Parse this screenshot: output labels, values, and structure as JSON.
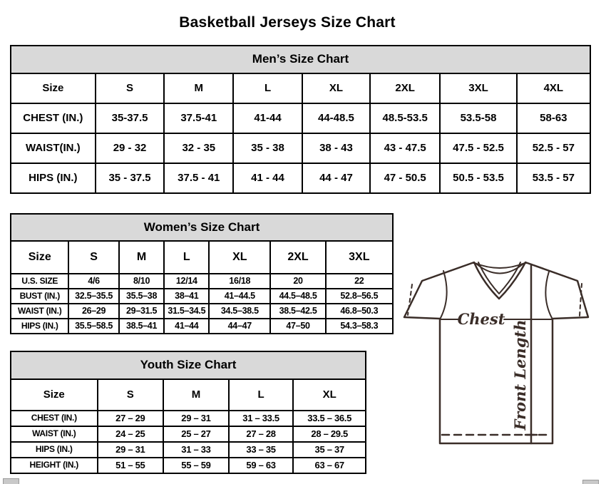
{
  "page": {
    "title": "Basketball Jerseys Size Chart"
  },
  "mens_chart": {
    "title": "Men’s Size Chart",
    "columns": [
      "Size",
      "S",
      "M",
      "L",
      "XL",
      "2XL",
      "3XL",
      "4XL"
    ],
    "rows": [
      {
        "label": "CHEST (IN.)",
        "values": [
          "35-37.5",
          "37.5-41",
          "41-44",
          "44-48.5",
          "48.5-53.5",
          "53.5-58",
          "58-63"
        ]
      },
      {
        "label": "WAIST(IN.)",
        "values": [
          "29 - 32",
          "32 - 35",
          "35 - 38",
          "38 - 43",
          "43 - 47.5",
          "47.5 - 52.5",
          "52.5 - 57"
        ]
      },
      {
        "label": "HIPS (IN.)",
        "values": [
          "35 - 37.5",
          "37.5 - 41",
          "41 - 44",
          "44 - 47",
          "47 - 50.5",
          "50.5 - 53.5",
          "53.5 - 57"
        ]
      }
    ]
  },
  "womens_chart": {
    "title": "Women’s Size Chart",
    "columns": [
      "Size",
      "S",
      "M",
      "L",
      "XL",
      "2XL",
      "3XL"
    ],
    "rows": [
      {
        "label": "U.S. SIZE",
        "values": [
          "4/6",
          "8/10",
          "12/14",
          "16/18",
          "20",
          "22"
        ]
      },
      {
        "label": "BUST (IN.)",
        "values": [
          "32.5–35.5",
          "35.5–38",
          "38–41",
          "41–44.5",
          "44.5–48.5",
          "52.8–56.5"
        ]
      },
      {
        "label": "WAIST (IN.)",
        "values": [
          "26–29",
          "29–31.5",
          "31.5–34.5",
          "34.5–38.5",
          "38.5–42.5",
          "46.8–50.3"
        ]
      },
      {
        "label": "HIPS (IN.)",
        "values": [
          "35.5–58.5",
          "38.5–41",
          "41–44",
          "44–47",
          "47–50",
          "54.3–58.3"
        ]
      }
    ]
  },
  "youth_chart": {
    "title": "Youth Size Chart",
    "columns": [
      "Size",
      "S",
      "M",
      "L",
      "XL"
    ],
    "rows": [
      {
        "label": "CHEST (IN.)",
        "values": [
          "27 – 29",
          "29 – 31",
          "31 – 33.5",
          "33.5 – 36.5"
        ]
      },
      {
        "label": "WAIST (IN.)",
        "values": [
          "24 – 25",
          "25 – 27",
          "27 – 28",
          "28 – 29.5"
        ]
      },
      {
        "label": "HIPS (IN.)",
        "values": [
          "29 – 31",
          "31 – 33",
          "33 – 35",
          "35 – 37"
        ]
      },
      {
        "label": "HEIGHT (IN.)",
        "values": [
          "51 – 55",
          "55 – 59",
          "59 – 63",
          "63 – 67"
        ]
      }
    ]
  },
  "diagram": {
    "chest_label": "Chest",
    "front_length_label": "Front Length"
  },
  "colors": {
    "header_fill": "#d9d9d9",
    "table_border": "#000000",
    "jersey_line": "#3a2d28"
  }
}
